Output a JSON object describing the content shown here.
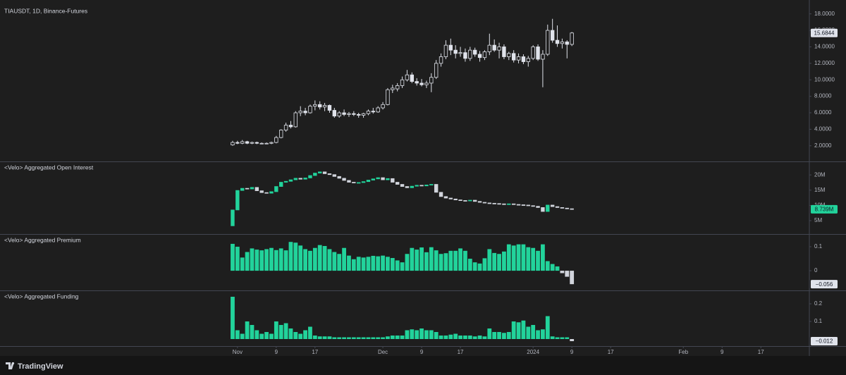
{
  "chart_data": [
    {
      "type": "candlestick",
      "title": "TIAUSDT, 1D, Binance-Futures",
      "x": [
        "2023-10-31",
        "2023-11-01",
        "2023-11-02",
        "2023-11-03",
        "2023-11-04",
        "2023-11-05",
        "2023-11-06",
        "2023-11-07",
        "2023-11-08",
        "2023-11-09",
        "2023-11-10",
        "2023-11-11",
        "2023-11-12",
        "2023-11-13",
        "2023-11-14",
        "2023-11-15",
        "2023-11-16",
        "2023-11-17",
        "2023-11-18",
        "2023-11-19",
        "2023-11-20",
        "2023-11-21",
        "2023-11-22",
        "2023-11-23",
        "2023-11-24",
        "2023-11-25",
        "2023-11-26",
        "2023-11-27",
        "2023-11-28",
        "2023-11-29",
        "2023-11-30",
        "2023-12-01",
        "2023-12-02",
        "2023-12-03",
        "2023-12-04",
        "2023-12-05",
        "2023-12-06",
        "2023-12-07",
        "2023-12-08",
        "2023-12-09",
        "2023-12-10",
        "2023-12-11",
        "2023-12-12",
        "2023-12-13",
        "2023-12-14",
        "2023-12-15",
        "2023-12-16",
        "2023-12-17",
        "2023-12-18",
        "2023-12-19",
        "2023-12-20",
        "2023-12-21",
        "2023-12-22",
        "2023-12-23",
        "2023-12-24",
        "2023-12-25",
        "2023-12-26",
        "2023-12-27",
        "2023-12-28",
        "2023-12-29",
        "2023-12-30",
        "2023-12-31",
        "2024-01-01",
        "2024-01-02",
        "2024-01-03",
        "2024-01-04",
        "2024-01-05",
        "2024-01-06",
        "2024-01-07",
        "2024-01-08",
        "2024-01-09"
      ],
      "xlim": [
        "2023-09-13",
        "2024-02-27"
      ],
      "xticks": [
        {
          "value": "2023-11-01",
          "label": "Nov"
        },
        {
          "value": "2023-11-09",
          "label": "9"
        },
        {
          "value": "2023-11-17",
          "label": "17"
        },
        {
          "value": "2023-12-01",
          "label": "Dec"
        },
        {
          "value": "2023-12-09",
          "label": "9"
        },
        {
          "value": "2023-12-17",
          "label": "17"
        },
        {
          "value": "2024-01-01",
          "label": "2024"
        },
        {
          "value": "2024-01-09",
          "label": "9"
        },
        {
          "value": "2024-01-17",
          "label": "17"
        },
        {
          "value": "2024-02-01",
          "label": "Feb"
        },
        {
          "value": "2024-02-09",
          "label": "9"
        },
        {
          "value": "2024-02-17",
          "label": "17"
        }
      ],
      "open": [
        2.1,
        2.4,
        2.3,
        2.5,
        2.3,
        2.4,
        2.3,
        2.3,
        2.3,
        2.4,
        3.0,
        3.9,
        4.5,
        4.3,
        6.0,
        6.2,
        6.0,
        6.8,
        7.0,
        6.7,
        6.9,
        6.3,
        5.6,
        6.0,
        5.8,
        5.9,
        5.8,
        5.7,
        5.9,
        6.2,
        6.1,
        6.6,
        7.0,
        8.8,
        8.9,
        9.3,
        10.0,
        10.6,
        9.8,
        9.6,
        9.4,
        9.6,
        10.3,
        12.0,
        12.8,
        14.2,
        13.6,
        13.2,
        13.3,
        12.6,
        13.6,
        13.1,
        12.7,
        13.4,
        14.2,
        13.6,
        14.0,
        12.8,
        13.2,
        12.4,
        12.8,
        12.2,
        12.6,
        14.0,
        12.5,
        13.1,
        16.0,
        14.8,
        14.4,
        14.6,
        14.3
      ],
      "high": [
        2.6,
        2.6,
        2.7,
        2.6,
        2.5,
        2.5,
        2.4,
        2.4,
        2.5,
        3.2,
        4.0,
        4.8,
        5.0,
        6.2,
        6.8,
        6.6,
        7.0,
        7.5,
        7.4,
        7.2,
        7.0,
        6.6,
        6.2,
        6.4,
        6.1,
        6.2,
        6.0,
        6.0,
        6.4,
        6.6,
        6.8,
        7.3,
        9.0,
        9.4,
        9.6,
        10.4,
        11.2,
        10.9,
        10.2,
        10.1,
        9.9,
        10.8,
        12.4,
        13.2,
        14.8,
        15.0,
        14.2,
        14.0,
        13.8,
        14.0,
        13.9,
        13.5,
        13.6,
        15.6,
        14.9,
        14.5,
        14.3,
        13.4,
        13.6,
        13.2,
        13.1,
        12.9,
        14.2,
        14.3,
        13.6,
        16.7,
        17.4,
        16.6,
        15.0,
        14.8,
        15.8
      ],
      "low": [
        2.0,
        2.2,
        2.2,
        2.2,
        2.2,
        2.2,
        2.2,
        2.2,
        2.2,
        2.3,
        2.9,
        3.7,
        4.1,
        4.2,
        5.6,
        5.7,
        5.9,
        6.3,
        6.4,
        6.2,
        6.0,
        5.4,
        5.4,
        5.6,
        5.5,
        5.6,
        5.4,
        5.4,
        5.7,
        5.9,
        6.0,
        6.4,
        6.9,
        8.4,
        8.6,
        9.0,
        9.8,
        9.6,
        9.3,
        9.2,
        9.0,
        8.5,
        10.1,
        11.6,
        12.5,
        13.0,
        12.6,
        12.8,
        12.2,
        12.3,
        12.8,
        12.2,
        12.4,
        13.0,
        13.4,
        12.6,
        12.5,
        12.4,
        12.1,
        12.0,
        11.9,
        11.6,
        12.4,
        12.3,
        9.1,
        12.9,
        14.5,
        14.0,
        13.8,
        12.6,
        14.1
      ],
      "close": [
        2.4,
        2.3,
        2.5,
        2.3,
        2.4,
        2.3,
        2.3,
        2.3,
        2.4,
        3.0,
        3.9,
        4.5,
        4.3,
        6.0,
        6.2,
        6.0,
        6.8,
        7.0,
        6.7,
        6.9,
        6.3,
        5.6,
        6.0,
        5.8,
        5.9,
        5.8,
        5.7,
        5.9,
        6.2,
        6.1,
        6.6,
        7.0,
        8.8,
        9.0,
        9.3,
        10.0,
        10.6,
        9.8,
        9.6,
        9.4,
        9.6,
        10.3,
        12.0,
        12.8,
        14.2,
        13.6,
        13.2,
        13.3,
        12.6,
        13.6,
        13.1,
        12.7,
        13.4,
        14.2,
        13.6,
        14.0,
        12.8,
        13.2,
        12.4,
        12.8,
        12.2,
        12.6,
        14.0,
        12.5,
        13.1,
        16.0,
        14.8,
        14.4,
        14.6,
        14.3,
        15.6844
      ],
      "ylim": [
        0.1,
        19.0
      ],
      "yticks": [
        {
          "value": 2,
          "label": "2.0000"
        },
        {
          "value": 4,
          "label": "4.0000"
        },
        {
          "value": 6,
          "label": "6.0000"
        },
        {
          "value": 8,
          "label": "8.0000"
        },
        {
          "value": 10,
          "label": "10.0000"
        },
        {
          "value": 12,
          "label": "12.0000"
        },
        {
          "value": 14,
          "label": "14.0000"
        },
        {
          "value": 16,
          "label": "16.0000"
        },
        {
          "value": 18,
          "label": "18.0000"
        }
      ],
      "up_color": "#e0e3eb",
      "down_color": "#e0e3eb",
      "hollow_up": true,
      "last_value": 15.6844,
      "last_value_color": "#e0e3eb"
    },
    {
      "type": "candlestick",
      "title": "<Velo> Aggregated Open Interest",
      "open": [
        3.3,
        8.5,
        14.9,
        15.6,
        15.4,
        15.9,
        14.8,
        14.2,
        14.0,
        14.5,
        16.2,
        17.6,
        17.9,
        18.4,
        18.9,
        18.6,
        19.0,
        19.8,
        20.6,
        21.0,
        20.4,
        20.1,
        19.5,
        18.9,
        18.2,
        17.6,
        17.4,
        17.5,
        17.8,
        18.3,
        18.7,
        19.1,
        18.4,
        18.8,
        17.6,
        16.9,
        16.2,
        15.8,
        16.3,
        16.6,
        16.4,
        16.7,
        16.9,
        14.3,
        12.9,
        12.4,
        12.1,
        11.8,
        11.6,
        11.5,
        11.7,
        11.3,
        11.0,
        10.8,
        10.7,
        10.6,
        10.5,
        10.4,
        10.5,
        10.3,
        10.2,
        10.1,
        9.9,
        9.7,
        9.3,
        8.0,
        10.1,
        9.6,
        9.3,
        9.1,
        8.9
      ],
      "close": [
        8.5,
        14.9,
        15.6,
        15.4,
        15.9,
        14.8,
        14.2,
        14.0,
        14.5,
        16.2,
        17.6,
        17.9,
        18.4,
        18.9,
        18.6,
        19.0,
        19.8,
        20.6,
        21.0,
        20.4,
        20.1,
        19.5,
        18.9,
        18.2,
        17.6,
        17.4,
        17.5,
        17.8,
        18.3,
        18.7,
        19.1,
        18.4,
        18.8,
        17.6,
        16.9,
        16.2,
        15.8,
        16.3,
        16.6,
        16.4,
        16.7,
        16.9,
        14.3,
        12.9,
        12.4,
        12.1,
        11.8,
        11.6,
        11.5,
        11.7,
        11.3,
        11.0,
        10.8,
        10.7,
        10.6,
        10.5,
        10.4,
        10.5,
        10.3,
        10.2,
        10.1,
        9.9,
        9.7,
        9.3,
        8.0,
        10.1,
        9.6,
        9.3,
        9.1,
        8.9,
        8.739
      ],
      "ylim": [
        0.6,
        24.2
      ],
      "yticks": [
        {
          "value": 5,
          "label": "5M"
        },
        {
          "value": 10,
          "label": "10M"
        },
        {
          "value": 15,
          "label": "15M"
        },
        {
          "value": 20,
          "label": "20M"
        }
      ],
      "up_color": "#22d39b",
      "down_color": "#d1d4dc",
      "hollow_up": false,
      "last_value": {
        "value": 8.739,
        "label": "8.739M"
      },
      "last_value_color": "#22d39b"
    },
    {
      "type": "bar",
      "title": "<Velo> Aggregated Premium",
      "values": [
        0.112,
        0.1,
        0.055,
        0.078,
        0.093,
        0.088,
        0.085,
        0.09,
        0.095,
        0.086,
        0.093,
        0.085,
        0.12,
        0.117,
        0.105,
        0.09,
        0.083,
        0.095,
        0.107,
        0.103,
        0.09,
        0.078,
        0.07,
        0.095,
        0.063,
        0.048,
        0.058,
        0.055,
        0.058,
        0.062,
        0.06,
        0.063,
        0.058,
        0.053,
        0.043,
        0.035,
        0.07,
        0.095,
        0.088,
        0.097,
        0.077,
        0.098,
        0.085,
        0.07,
        0.073,
        0.083,
        0.083,
        0.093,
        0.083,
        0.05,
        0.035,
        0.03,
        0.052,
        0.09,
        0.074,
        0.07,
        0.08,
        0.11,
        0.105,
        0.11,
        0.11,
        0.098,
        0.095,
        0.083,
        0.11,
        0.04,
        0.028,
        0.018,
        -0.01,
        -0.025,
        -0.056
      ],
      "ylim": [
        -0.082,
        0.15
      ],
      "yticks": [
        0,
        0.1
      ],
      "color_positive": "#22d39b",
      "color_negative": "#d1d4dc",
      "last_value": {
        "value": -0.056,
        "label": "−0.056"
      },
      "last_value_color": "#e0e3eb"
    },
    {
      "type": "bar",
      "title": "<Velo> Aggregated Funding",
      "values": [
        0.24,
        0.05,
        0.03,
        0.1,
        0.08,
        0.05,
        0.03,
        0.04,
        0.03,
        0.1,
        0.08,
        0.09,
        0.06,
        0.04,
        0.03,
        0.05,
        0.07,
        0.02,
        0.015,
        0.015,
        0.015,
        0.01,
        0.01,
        0.01,
        0.01,
        0.01,
        0.01,
        0.01,
        0.01,
        0.01,
        0.01,
        0.01,
        0.015,
        0.02,
        0.02,
        0.02,
        0.05,
        0.055,
        0.05,
        0.06,
        0.05,
        0.05,
        0.04,
        0.02,
        0.02,
        0.025,
        0.03,
        0.02,
        0.02,
        0.02,
        0.015,
        0.02,
        0.015,
        0.06,
        0.04,
        0.04,
        0.035,
        0.04,
        0.1,
        0.095,
        0.105,
        0.07,
        0.08,
        0.05,
        0.055,
        0.13,
        0.015,
        0.01,
        0.01,
        0.01,
        -0.012
      ],
      "ylim": [
        -0.04,
        0.272
      ],
      "yticks": [
        0.1,
        0.2
      ],
      "color_positive": "#22d39b",
      "color_negative": "#d1d4dc",
      "last_value": {
        "value": -0.012,
        "label": "−0.012"
      },
      "last_value_color": "#e0e3eb"
    }
  ],
  "footer": "TradingView"
}
